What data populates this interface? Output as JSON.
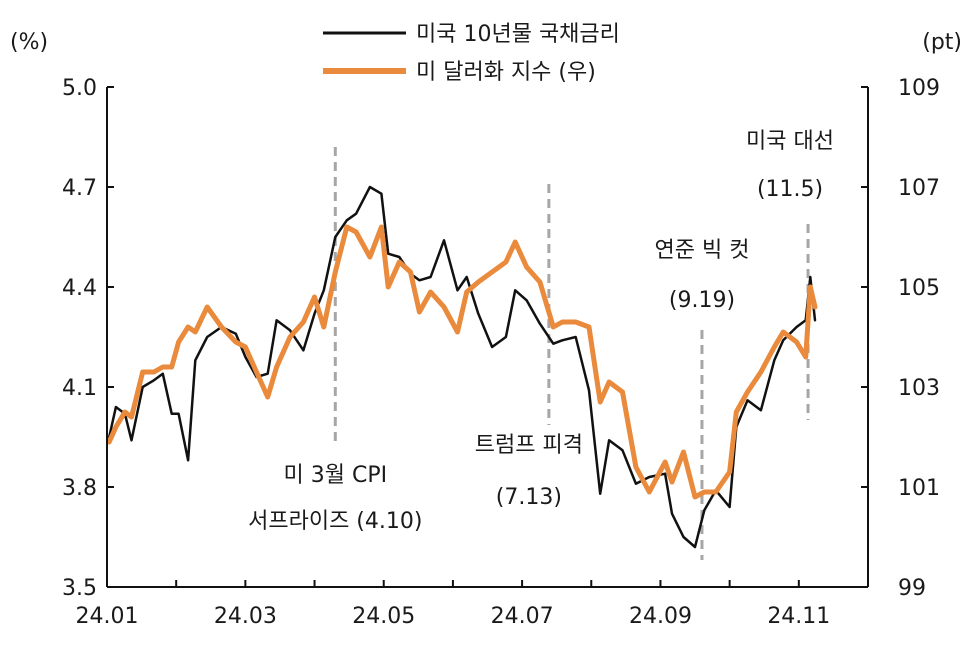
{
  "chart_data": {
    "type": "line",
    "left_unit": "(%)",
    "right_unit": "(pt)",
    "x_ticks": [
      "24.01",
      "24.03",
      "24.05",
      "24.07",
      "24.09",
      "24.11"
    ],
    "y_left_ticks": [
      "3.5",
      "3.8",
      "4.1",
      "4.4",
      "4.7",
      "5.0"
    ],
    "y_right_ticks": [
      "99",
      "101",
      "103",
      "105",
      "107",
      "109"
    ],
    "ylim_left": [
      3.5,
      5.0
    ],
    "ylim_right": [
      99,
      109
    ],
    "legend_position": "top-center",
    "series": [
      {
        "name": "미국 10년물 국채금리",
        "axis": "left",
        "color": "#111111",
        "points": [
          [
            "2024-01-02",
            3.95
          ],
          [
            "2024-01-05",
            4.04
          ],
          [
            "2024-01-09",
            4.02
          ],
          [
            "2024-01-12",
            3.94
          ],
          [
            "2024-01-17",
            4.1
          ],
          [
            "2024-01-22",
            4.12
          ],
          [
            "2024-01-26",
            4.14
          ],
          [
            "2024-01-30",
            4.02
          ],
          [
            "2024-02-02",
            4.02
          ],
          [
            "2024-02-06",
            3.88
          ],
          [
            "2024-02-09",
            4.18
          ],
          [
            "2024-02-14",
            4.25
          ],
          [
            "2024-02-20",
            4.28
          ],
          [
            "2024-02-26",
            4.26
          ],
          [
            "2024-03-01",
            4.19
          ],
          [
            "2024-03-06",
            4.13
          ],
          [
            "2024-03-11",
            4.14
          ],
          [
            "2024-03-15",
            4.3
          ],
          [
            "2024-03-21",
            4.27
          ],
          [
            "2024-03-27",
            4.21
          ],
          [
            "2024-04-01",
            4.32
          ],
          [
            "2024-04-05",
            4.39
          ],
          [
            "2024-04-10",
            4.55
          ],
          [
            "2024-04-15",
            4.6
          ],
          [
            "2024-04-19",
            4.62
          ],
          [
            "2024-04-25",
            4.7
          ],
          [
            "2024-04-30",
            4.68
          ],
          [
            "2024-05-03",
            4.5
          ],
          [
            "2024-05-08",
            4.49
          ],
          [
            "2024-05-13",
            4.44
          ],
          [
            "2024-05-17",
            4.42
          ],
          [
            "2024-05-22",
            4.43
          ],
          [
            "2024-05-28",
            4.54
          ],
          [
            "2024-06-03",
            4.39
          ],
          [
            "2024-06-07",
            4.43
          ],
          [
            "2024-06-12",
            4.32
          ],
          [
            "2024-06-18",
            4.22
          ],
          [
            "2024-06-24",
            4.25
          ],
          [
            "2024-06-28",
            4.39
          ],
          [
            "2024-07-03",
            4.36
          ],
          [
            "2024-07-09",
            4.29
          ],
          [
            "2024-07-15",
            4.23
          ],
          [
            "2024-07-19",
            4.24
          ],
          [
            "2024-07-25",
            4.25
          ],
          [
            "2024-07-31",
            4.09
          ],
          [
            "2024-08-05",
            3.78
          ],
          [
            "2024-08-09",
            3.94
          ],
          [
            "2024-08-15",
            3.91
          ],
          [
            "2024-08-21",
            3.81
          ],
          [
            "2024-08-27",
            3.83
          ],
          [
            "2024-09-03",
            3.84
          ],
          [
            "2024-09-06",
            3.72
          ],
          [
            "2024-09-11",
            3.65
          ],
          [
            "2024-09-16",
            3.62
          ],
          [
            "2024-09-20",
            3.73
          ],
          [
            "2024-09-25",
            3.79
          ],
          [
            "2024-10-01",
            3.74
          ],
          [
            "2024-10-04",
            3.98
          ],
          [
            "2024-10-09",
            4.06
          ],
          [
            "2024-10-15",
            4.03
          ],
          [
            "2024-10-21",
            4.18
          ],
          [
            "2024-10-25",
            4.24
          ],
          [
            "2024-10-31",
            4.28
          ],
          [
            "2024-11-04",
            4.3
          ],
          [
            "2024-11-06",
            4.43
          ],
          [
            "2024-11-08",
            4.3
          ]
        ]
      },
      {
        "name": "미 달러화 지수 (우)",
        "axis": "right",
        "color": "#E98A3C",
        "points": [
          [
            "2024-01-02",
            101.9
          ],
          [
            "2024-01-05",
            102.2
          ],
          [
            "2024-01-09",
            102.5
          ],
          [
            "2024-01-12",
            102.4
          ],
          [
            "2024-01-17",
            103.3
          ],
          [
            "2024-01-22",
            103.3
          ],
          [
            "2024-01-26",
            103.4
          ],
          [
            "2024-01-30",
            103.4
          ],
          [
            "2024-02-02",
            103.9
          ],
          [
            "2024-02-06",
            104.2
          ],
          [
            "2024-02-09",
            104.1
          ],
          [
            "2024-02-14",
            104.6
          ],
          [
            "2024-02-20",
            104.2
          ],
          [
            "2024-02-26",
            103.9
          ],
          [
            "2024-03-01",
            103.8
          ],
          [
            "2024-03-06",
            103.3
          ],
          [
            "2024-03-11",
            102.8
          ],
          [
            "2024-03-15",
            103.4
          ],
          [
            "2024-03-21",
            104.0
          ],
          [
            "2024-03-27",
            104.3
          ],
          [
            "2024-04-01",
            104.8
          ],
          [
            "2024-04-05",
            104.2
          ],
          [
            "2024-04-10",
            105.3
          ],
          [
            "2024-04-15",
            106.2
          ],
          [
            "2024-04-19",
            106.1
          ],
          [
            "2024-04-25",
            105.6
          ],
          [
            "2024-04-30",
            106.2
          ],
          [
            "2024-05-03",
            105.0
          ],
          [
            "2024-05-08",
            105.5
          ],
          [
            "2024-05-13",
            105.3
          ],
          [
            "2024-05-17",
            104.5
          ],
          [
            "2024-05-22",
            104.9
          ],
          [
            "2024-05-28",
            104.6
          ],
          [
            "2024-06-03",
            104.1
          ],
          [
            "2024-06-07",
            104.9
          ],
          [
            "2024-06-12",
            105.1
          ],
          [
            "2024-06-18",
            105.3
          ],
          [
            "2024-06-24",
            105.5
          ],
          [
            "2024-06-28",
            105.9
          ],
          [
            "2024-07-03",
            105.4
          ],
          [
            "2024-07-09",
            105.1
          ],
          [
            "2024-07-15",
            104.2
          ],
          [
            "2024-07-19",
            104.3
          ],
          [
            "2024-07-25",
            104.3
          ],
          [
            "2024-07-31",
            104.2
          ],
          [
            "2024-08-05",
            102.7
          ],
          [
            "2024-08-09",
            103.1
          ],
          [
            "2024-08-15",
            102.9
          ],
          [
            "2024-08-21",
            101.4
          ],
          [
            "2024-08-27",
            100.9
          ],
          [
            "2024-09-03",
            101.5
          ],
          [
            "2024-09-06",
            101.1
          ],
          [
            "2024-09-11",
            101.7
          ],
          [
            "2024-09-16",
            100.8
          ],
          [
            "2024-09-20",
            100.9
          ],
          [
            "2024-09-25",
            100.9
          ],
          [
            "2024-10-01",
            101.3
          ],
          [
            "2024-10-04",
            102.5
          ],
          [
            "2024-10-09",
            102.9
          ],
          [
            "2024-10-15",
            103.3
          ],
          [
            "2024-10-21",
            103.8
          ],
          [
            "2024-10-25",
            104.1
          ],
          [
            "2024-10-31",
            103.9
          ],
          [
            "2024-11-04",
            103.6
          ],
          [
            "2024-11-06",
            105.0
          ],
          [
            "2024-11-08",
            104.6
          ]
        ]
      }
    ],
    "events": [
      {
        "date": "2024-04-10",
        "lines": [
          "미 3월 CPI",
          "서프라이즈 (4.10)"
        ],
        "label_position": "below"
      },
      {
        "date": "2024-07-13",
        "lines": [
          "트럼프 피격",
          "(7.13)"
        ],
        "label_position": "below"
      },
      {
        "date": "2024-09-19",
        "lines": [
          "연준 빅 컷",
          "(9.19)"
        ],
        "label_position": "above"
      },
      {
        "date": "2024-11-05",
        "lines": [
          "미국 대선",
          "(11.5)"
        ],
        "label_position": "above"
      }
    ]
  }
}
